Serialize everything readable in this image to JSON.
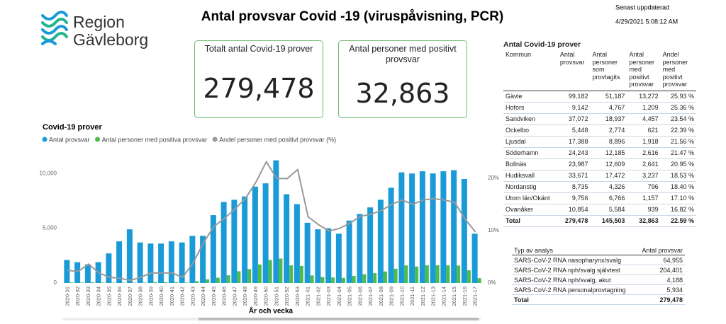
{
  "header": {
    "logo_line1": "Region",
    "logo_line2": "Gävleborg",
    "title": "Antal provsvar Covid -19 (viruspåvisning, PCR)",
    "updated_label": "Senast uppdaterad",
    "updated_value": "4/29/2021 5:08:12 AM"
  },
  "kpis": [
    {
      "title": "Totalt antal Covid-19 prover",
      "value": "279,478"
    },
    {
      "title": "Antal personer med positivt provsvar",
      "value": "32,863"
    }
  ],
  "table": {
    "title": "Antal Covid-19 prover",
    "columns": [
      "Kommun",
      "Antal provsvar",
      "Antal personer som provtagits",
      "Antal personer med positivt provsvar",
      "Andel personer med positivt provsvar"
    ],
    "rows": [
      [
        "Gävle",
        "99,182",
        "51,187",
        "13,272",
        "25.93 %"
      ],
      [
        "Hofors",
        "9,142",
        "4,767",
        "1,209",
        "25.36 %"
      ],
      [
        "Sandviken",
        "37,072",
        "18,937",
        "4,457",
        "23.54 %"
      ],
      [
        "Ockelbo",
        "5,448",
        "2,774",
        "621",
        "22.39 %"
      ],
      [
        "Ljusdal",
        "17,388",
        "8,896",
        "1,918",
        "21.56 %"
      ],
      [
        "Söderhamn",
        "24,243",
        "12,185",
        "2,616",
        "21.47 %"
      ],
      [
        "Bollnäs",
        "23,987",
        "12,609",
        "2,641",
        "20.95 %"
      ],
      [
        "Hudiksvall",
        "33,671",
        "17,472",
        "3,237",
        "18.53 %"
      ],
      [
        "Nordanstig",
        "8,735",
        "4,326",
        "796",
        "18.40 %"
      ],
      [
        "Utom län/Okänt",
        "9,756",
        "6,766",
        "1,157",
        "17.10 %"
      ],
      [
        "Ovanåker",
        "10,854",
        "5,584",
        "939",
        "16.82 %"
      ]
    ],
    "total": [
      "Total",
      "279,478",
      "145,503",
      "32,863",
      "22.59 %"
    ]
  },
  "analysis_table": {
    "columns": [
      "Typ av analys",
      "Antal provsvar"
    ],
    "rows": [
      [
        "SARS-CoV-2 RNA nasopharynx/svalg",
        "64,955"
      ],
      [
        "SARS-CoV-2 RNA nph/svalg självtest",
        "204,401"
      ],
      [
        "SARS-CoV-2 RNA nph/svalg, akut",
        "4,188"
      ],
      [
        "SARS-CoV-2 RNA personalprovtagning",
        "5,934"
      ]
    ],
    "total": [
      "Total",
      "279,478"
    ]
  },
  "chart_data": {
    "type": "bar",
    "title": "Covid-19 prover",
    "x_label": "År och vecka",
    "categories": [
      "2020-31",
      "2020-32",
      "2020-33",
      "2020-34",
      "2020-35",
      "2020-36",
      "2020-37",
      "2020-38",
      "2020-39",
      "2020-40",
      "2020-41",
      "2020-42",
      "2020-43",
      "2020-44",
      "2020-45",
      "2020-46",
      "2020-47",
      "2020-48",
      "2020-49",
      "2020-50",
      "2020-51",
      "2020-52",
      "2020-53",
      "2021-01",
      "2021-02",
      "2021-03",
      "2021-04",
      "2021-05",
      "2021-06",
      "2021-07",
      "2021-08",
      "2021-09",
      "2021-10",
      "2021-11",
      "2021-12",
      "2021-13",
      "2021-14",
      "2021-15",
      "2021-16",
      "2021-17"
    ],
    "series": [
      {
        "name": "Antal provsvar",
        "color": "#1a9bd7",
        "values": [
          2100,
          1900,
          1700,
          1900,
          2700,
          3800,
          4900,
          3700,
          3600,
          3600,
          3800,
          3700,
          4300,
          4300,
          6200,
          7400,
          7600,
          7900,
          8800,
          9100,
          11200,
          8100,
          7200,
          5500,
          4900,
          5000,
          4500,
          5700,
          6300,
          6900,
          7600,
          8700,
          10100,
          10000,
          10200,
          10000,
          10200,
          10300,
          9500,
          4500
        ]
      },
      {
        "name": "Antal personer med positiva provsvar",
        "color": "#4dbb4d",
        "values": [
          50,
          40,
          60,
          40,
          30,
          30,
          25,
          40,
          70,
          70,
          70,
          40,
          160,
          330,
          480,
          700,
          1070,
          1270,
          1690,
          2100,
          2230,
          1610,
          1560,
          690,
          540,
          500,
          470,
          650,
          800,
          900,
          1050,
          1300,
          1600,
          1500,
          1610,
          1610,
          1610,
          1590,
          1160,
          440
        ]
      },
      {
        "name": "Andel personer med positivt provsvar (%)",
        "color": "#999999",
        "axis": "y2",
        "values": [
          2.4,
          2.2,
          3.6,
          1.9,
          1.1,
          0.9,
          0.5,
          1.1,
          1.9,
          1.9,
          1.9,
          1.1,
          3.8,
          7.7,
          10.8,
          12.3,
          14.1,
          16.1,
          19.2,
          23.1,
          19.9,
          19.9,
          21.6,
          12.6,
          11.1,
          9.9,
          10.4,
          11.4,
          12.7,
          13.1,
          13.8,
          15.0,
          15.8,
          15.0,
          15.8,
          16.1,
          15.8,
          15.4,
          12.2,
          9.7
        ]
      }
    ],
    "ylim": [
      0,
      11500
    ],
    "yticks": [
      0,
      {
        "value": 5000,
        "label": "5,000"
      },
      {
        "value": 10000,
        "label": "10,000"
      }
    ],
    "y2lim": [
      0,
      24
    ],
    "y2ticks": [
      {
        "value": 0,
        "label": "0%"
      },
      {
        "value": 10,
        "label": "10%"
      },
      {
        "value": 20,
        "label": "20%"
      }
    ],
    "grid": false
  }
}
